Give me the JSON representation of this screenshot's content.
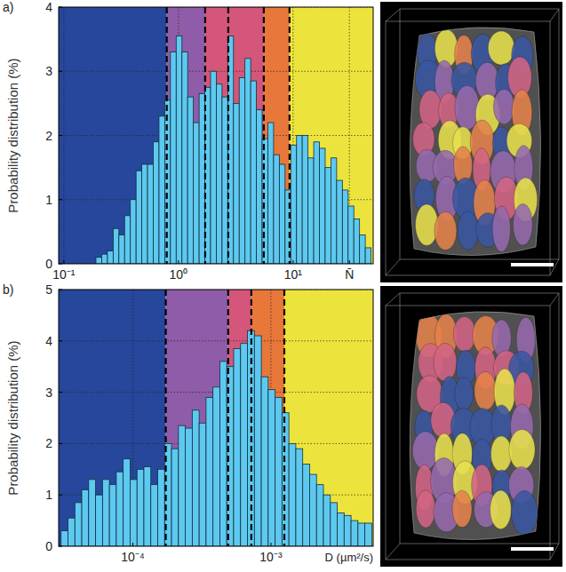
{
  "chart_data": [
    {
      "type": "histogram",
      "panel_label": "a)",
      "ylabel": "Probability distribution (%)",
      "log": "x",
      "grid": true,
      "color": "#5ec9f0",
      "xlim": [
        0.09,
        50
      ],
      "ylim": [
        0,
        4
      ],
      "xticks": [
        {
          "value": 0.1,
          "label": "10⁻¹"
        },
        {
          "value": 1,
          "label": "10⁰"
        },
        {
          "value": 10,
          "label": "10¹"
        },
        {
          "value": 31,
          "label": "N̄"
        }
      ],
      "yticks": [
        0,
        1,
        2,
        3,
        4
      ],
      "bins": [
        0.1905,
        0.2138,
        0.2399,
        0.2692,
        0.302,
        0.3388,
        0.3802,
        0.4266,
        0.4786,
        0.537,
        0.6026,
        0.6761,
        0.7586,
        0.8511,
        0.955,
        1.072,
        1.202,
        1.349,
        1.514,
        1.698,
        1.905,
        2.138,
        2.399,
        2.692,
        3.02,
        3.388,
        3.802,
        4.266,
        4.786,
        5.37,
        6.026,
        6.761,
        7.586,
        8.511,
        9.55,
        10.72,
        12.02,
        13.49,
        15.14,
        16.98,
        19.05,
        21.38,
        23.99,
        26.92,
        30.2,
        33.88,
        38.02,
        42.66,
        47.86
      ],
      "values": [
        0.1,
        0.15,
        0.2,
        0.55,
        0.45,
        0.75,
        1.0,
        1.45,
        1.55,
        1.55,
        1.9,
        2.3,
        2.55,
        3.3,
        3.55,
        3.3,
        2.6,
        2.2,
        2.65,
        2.75,
        3.0,
        2.8,
        2.6,
        3.55,
        2.5,
        2.9,
        3.2,
        2.85,
        2.4,
        1.95,
        2.2,
        1.7,
        1.55,
        1.15,
        1.85,
        2.0,
        2.0,
        1.65,
        1.9,
        1.8,
        1.5,
        1.65,
        1.3,
        1.15,
        0.9,
        0.7,
        0.45,
        0.25
      ],
      "bands": [
        {
          "from": 0.09,
          "to": 0.79,
          "color": "#26479b"
        },
        {
          "from": 0.79,
          "to": 1.71,
          "color": "#8e5ca8"
        },
        {
          "from": 1.71,
          "to": 5.55,
          "color": "#d4567a"
        },
        {
          "from": 5.55,
          "to": 9.31,
          "color": "#e8773a"
        },
        {
          "from": 9.31,
          "to": 50,
          "color": "#ece43c"
        }
      ],
      "thresholds": [
        0.79,
        1.71,
        2.72,
        5.55,
        9.31
      ]
    },
    {
      "type": "histogram",
      "panel_label": "b)",
      "ylabel": "Probability distribution (%)",
      "xlabel": "D (µm²/s)",
      "log": "x",
      "grid": true,
      "color": "#5ec9f0",
      "xlim": [
        2.9e-05,
        0.0055
      ],
      "ylim": [
        0,
        5
      ],
      "xticks": [
        {
          "value": 0.0001,
          "label": "10⁻⁴"
        },
        {
          "value": 0.001,
          "label": "10⁻³"
        }
      ],
      "yticks": [
        0,
        1,
        2,
        3,
        4,
        5
      ],
      "bins": [
        3.02e-05,
        3.388e-05,
        3.802e-05,
        4.266e-05,
        4.786e-05,
        5.37e-05,
        6.026e-05,
        6.761e-05,
        7.586e-05,
        8.511e-05,
        9.55e-05,
        0.0001072,
        0.0001202,
        0.0001349,
        0.0001514,
        0.0001698,
        0.0001905,
        0.0002138,
        0.0002399,
        0.0002692,
        0.000302,
        0.0003388,
        0.0003802,
        0.0004266,
        0.0004786,
        0.000537,
        0.0006026,
        0.0006761,
        0.0007586,
        0.0008511,
        0.000955,
        0.001072,
        0.001202,
        0.001349,
        0.001514,
        0.001698,
        0.001905,
        0.002138,
        0.002399,
        0.002692,
        0.00302,
        0.003388,
        0.003802,
        0.004266,
        0.004786,
        0.00537
      ],
      "values": [
        0.3,
        0.55,
        0.85,
        1.1,
        1.3,
        1.0,
        1.3,
        1.2,
        1.45,
        1.7,
        1.3,
        1.5,
        1.55,
        1.2,
        1.5,
        2.0,
        1.9,
        2.35,
        2.3,
        2.65,
        2.4,
        2.9,
        3.1,
        3.6,
        3.5,
        3.85,
        3.95,
        4.2,
        4.1,
        3.3,
        3.05,
        2.9,
        2.6,
        2.0,
        1.9,
        1.6,
        1.4,
        1.2,
        1.0,
        0.85,
        0.65,
        0.6,
        0.5,
        0.45,
        0.45
      ],
      "bands": [
        {
          "from": 2.9e-05,
          "to": 0.000173,
          "color": "#26479b"
        },
        {
          "from": 0.000173,
          "to": 0.00049,
          "color": "#8e5ca8"
        },
        {
          "from": 0.00049,
          "to": 0.000721,
          "color": "#d4567a"
        },
        {
          "from": 0.000721,
          "to": 0.00125,
          "color": "#e8773a"
        },
        {
          "from": 0.00125,
          "to": 0.0055,
          "color": "#ece43c"
        }
      ],
      "thresholds": [
        0.000173,
        0.00049,
        0.000721,
        0.00125
      ]
    }
  ]
}
